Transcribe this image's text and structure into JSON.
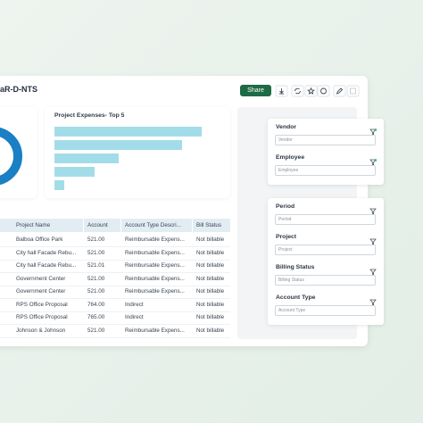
{
  "header": {
    "title": "aR-D-NTS",
    "share": "Share"
  },
  "expenses_chart": {
    "title": "Project Expenses- Top 5",
    "values": [
      165,
      143,
      72,
      45,
      11
    ],
    "color": "#a3dce9"
  },
  "table": {
    "columns": [
      "Project Name",
      "Account",
      "Account Type Descri...",
      "Bill Status"
    ],
    "rows": [
      [
        "Balboa Office Park",
        "521.00",
        "Reimbursable Expens...",
        "Not billable"
      ],
      [
        "City hall Facade Rebu...",
        "521.00",
        "Reimbursable Expens...",
        "Not billable"
      ],
      [
        "City hall Facade Rebu...",
        "521.01",
        "Reimbursable Expens...",
        "Not billable"
      ],
      [
        "Government Center",
        "521.00",
        "Reimbursable Expens...",
        "Not billable"
      ],
      [
        "Government Center",
        "521.00",
        "Reimbursable Expens...",
        "Not billable"
      ],
      [
        "RPS Office Proposal",
        "764.00",
        "Indirect",
        "Not billable"
      ],
      [
        "RPS Office Proposal",
        "765.00",
        "Indirect",
        "Not billable"
      ],
      [
        "Johnson & Johnson",
        "521.00",
        "Reimbursable Expens...",
        "Not billable"
      ]
    ]
  },
  "filter_groups": [
    [
      {
        "label": "Vendor",
        "placeholder": "Vendor"
      },
      {
        "label": "Employee",
        "placeholder": "Employee"
      }
    ],
    [
      {
        "label": "Period",
        "placeholder": "Period"
      },
      {
        "label": "Project",
        "placeholder": "Project"
      },
      {
        "label": "Billing Status",
        "placeholder": "Billing Status"
      },
      {
        "label": "Account Type",
        "placeholder": "Account Type"
      }
    ]
  ]
}
